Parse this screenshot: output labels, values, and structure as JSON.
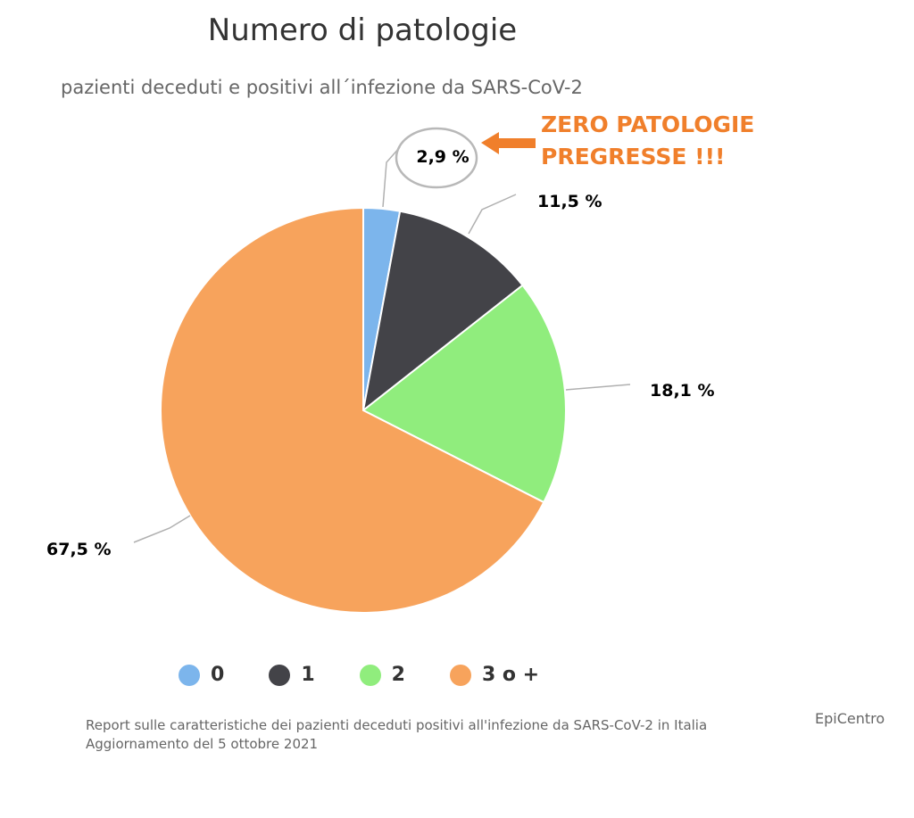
{
  "chart_data": {
    "type": "pie",
    "title": "Numero di patologie",
    "subtitle": "pazienti deceduti e positivi all´infezione da SARS-CoV-2",
    "series": [
      {
        "name": "0",
        "value": 2.9,
        "label": "2,9 %",
        "color": "#7cb5ec"
      },
      {
        "name": "1",
        "value": 11.5,
        "label": "11,5 %",
        "color": "#434348"
      },
      {
        "name": "2",
        "value": 18.1,
        "label": "18,1 %",
        "color": "#90ed7d"
      },
      {
        "name": "3 o +",
        "value": 67.5,
        "label": "67,5 %",
        "color": "#f7a35c"
      }
    ],
    "legend": {
      "placement": "bottom"
    },
    "annotation": {
      "lines": [
        "ZERO PATOLOGIE",
        "PREGRESSE !!!"
      ],
      "color": "#f07f2b",
      "target": "0"
    },
    "credits": "EpiCentro",
    "source": {
      "line1": "Report sulle caratteristiche dei pazienti deceduti positivi all'infezione da SARS-CoV-2 in Italia",
      "line2": "Aggiornamento del 5 ottobre 2021"
    }
  }
}
